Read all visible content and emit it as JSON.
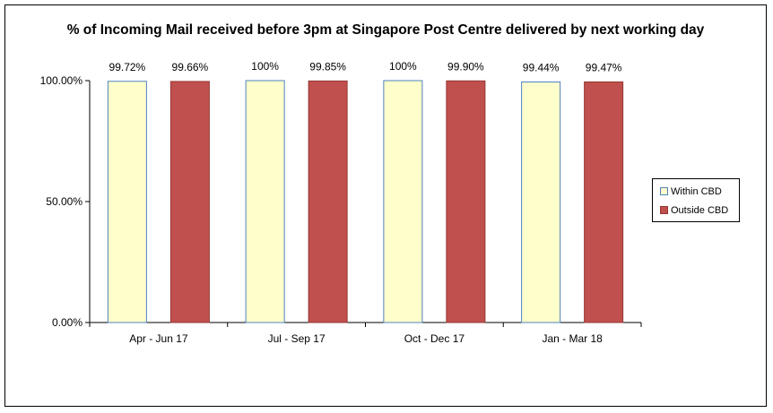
{
  "chart_data": {
    "type": "bar",
    "title": "% of Incoming Mail received before 3pm at Singapore Post Centre delivered by next working day",
    "categories": [
      "Apr - Jun 17",
      "Jul - Sep 17",
      "Oct - Dec 17",
      "Jan - Mar 18"
    ],
    "series": [
      {
        "name": "Within CBD",
        "values": [
          99.72,
          100,
          100,
          99.44
        ],
        "labels": [
          "99.72%",
          "100%",
          "100%",
          "99.44%"
        ],
        "color": "#FFFFCC",
        "edge": "#4F81BD"
      },
      {
        "name": "Outside CBD",
        "values": [
          99.66,
          99.85,
          99.9,
          99.47
        ],
        "labels": [
          "99.66%",
          "99.85%",
          "99.90%",
          "99.47%"
        ],
        "color": "#C0504D",
        "edge": "#943634"
      }
    ],
    "yticks": [
      "0.00%",
      "50.00%",
      "100.00%"
    ],
    "ylim": [
      0,
      100
    ],
    "grid": false,
    "legend_position": "right"
  }
}
